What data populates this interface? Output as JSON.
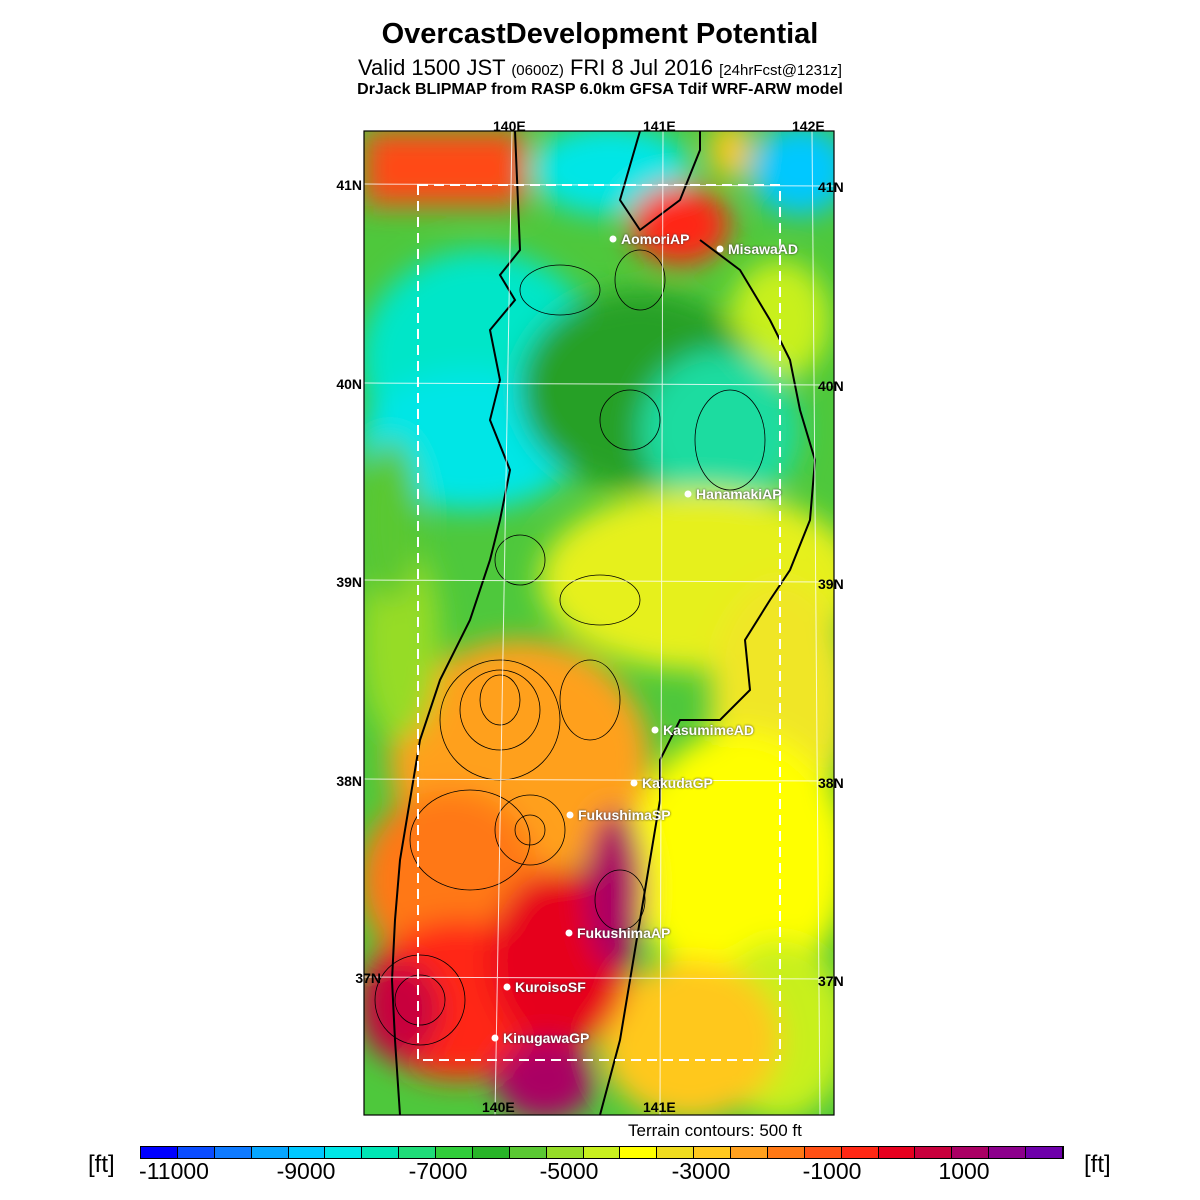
{
  "title": "OvercastDevelopment Potential",
  "valid_main": "Valid 1500 JST",
  "valid_z": "(0600Z)",
  "valid_date": "FRI 8 Jul 2016",
  "valid_fcst": "[24hrFcst@1231z]",
  "model_line": "DrJack BLIPMAP from RASP 6.0km GFSA Tdif WRF-ARW model",
  "lon_labels": {
    "top": [
      "140E",
      "141E",
      "142E"
    ],
    "bottom": [
      "140E",
      "141E"
    ]
  },
  "lat_labels": [
    "41N",
    "40N",
    "39N",
    "38N",
    "37N"
  ],
  "stations": [
    "AomoriAP",
    "MisawaAD",
    "HanamakiAP",
    "KasumimeAD",
    "KakudaGP",
    "FukushimaSP",
    "FukushimaAP",
    "KuroisoSF",
    "KinugawaGP"
  ],
  "terrain_note": "Terrain contours: 500 ft",
  "unit": "[ft]",
  "colorbar": {
    "labels": [
      "-11000",
      "-9000",
      "-7000",
      "-5000",
      "-3000",
      "-1000",
      "1000"
    ],
    "colors": [
      "#0000ff",
      "#0a4cff",
      "#0e7aff",
      "#06a6ff",
      "#00c8ff",
      "#00e6e6",
      "#00e6b4",
      "#1edc78",
      "#30cd3a",
      "#28b428",
      "#5ac832",
      "#96dc28",
      "#c8f01e",
      "#ffff00",
      "#f0dc1e",
      "#ffc81e",
      "#ffa01e",
      "#ff7814",
      "#ff5014",
      "#ff2814",
      "#e6001e",
      "#c8003c",
      "#aa0064",
      "#8c008c",
      "#6e00aa"
    ]
  },
  "map_field_colors": {
    "sea_north": "#00e6e6",
    "green": "#28b428",
    "yellow_green": "#c8f01e",
    "yellow": "#ffff00",
    "orange": "#ffa01e",
    "red": "#ff2814",
    "magenta": "#aa0064"
  }
}
